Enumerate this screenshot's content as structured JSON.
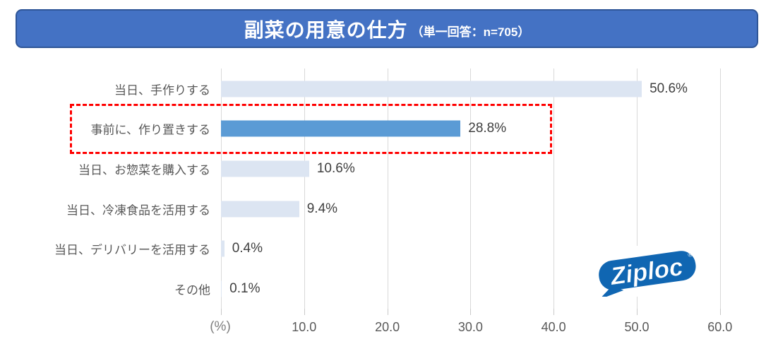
{
  "title": {
    "main": "副菜の用意の仕方",
    "sub": "（単一回答：n=705）"
  },
  "colors": {
    "banner_fill": "#4472C4",
    "banner_border": "#2E5597",
    "bar_default": "#DCE5F2",
    "bar_highlight": "#5B9BD5",
    "highlight_box": "#FF0000",
    "gridline": "#D9D9D9",
    "category_text": "#595959",
    "value_text": "#3F3F3F",
    "logo_blue": "#1066B2"
  },
  "chart_data": {
    "type": "bar",
    "orientation": "horizontal",
    "title": "副菜の用意の仕方（単一回答：n=705）",
    "categories": [
      "当日、手作りする",
      "事前に、作り置きする",
      "当日、お惣菜を購入する",
      "当日、冷凍食品を活用する",
      "当日、デリバリーを活用する",
      "その他"
    ],
    "values": [
      50.6,
      28.8,
      10.6,
      9.4,
      0.4,
      0.1
    ],
    "value_labels": [
      "50.6%",
      "28.8%",
      "10.6%",
      "9.4%",
      "0.4%",
      "0.1%"
    ],
    "highlighted_index": 1,
    "highlighted_category": "事前に、作り置きする",
    "xlabel": "(%)",
    "xticks": [
      "10.0",
      "20.0",
      "30.0",
      "40.0",
      "50.0",
      "60.0"
    ],
    "xtick_values": [
      10,
      20,
      30,
      40,
      50,
      60
    ],
    "xlim": [
      0,
      60
    ],
    "grid": "vertical-only",
    "legend": "none"
  },
  "logo": {
    "brand": "Ziploc",
    "registered_symbol": "®"
  }
}
